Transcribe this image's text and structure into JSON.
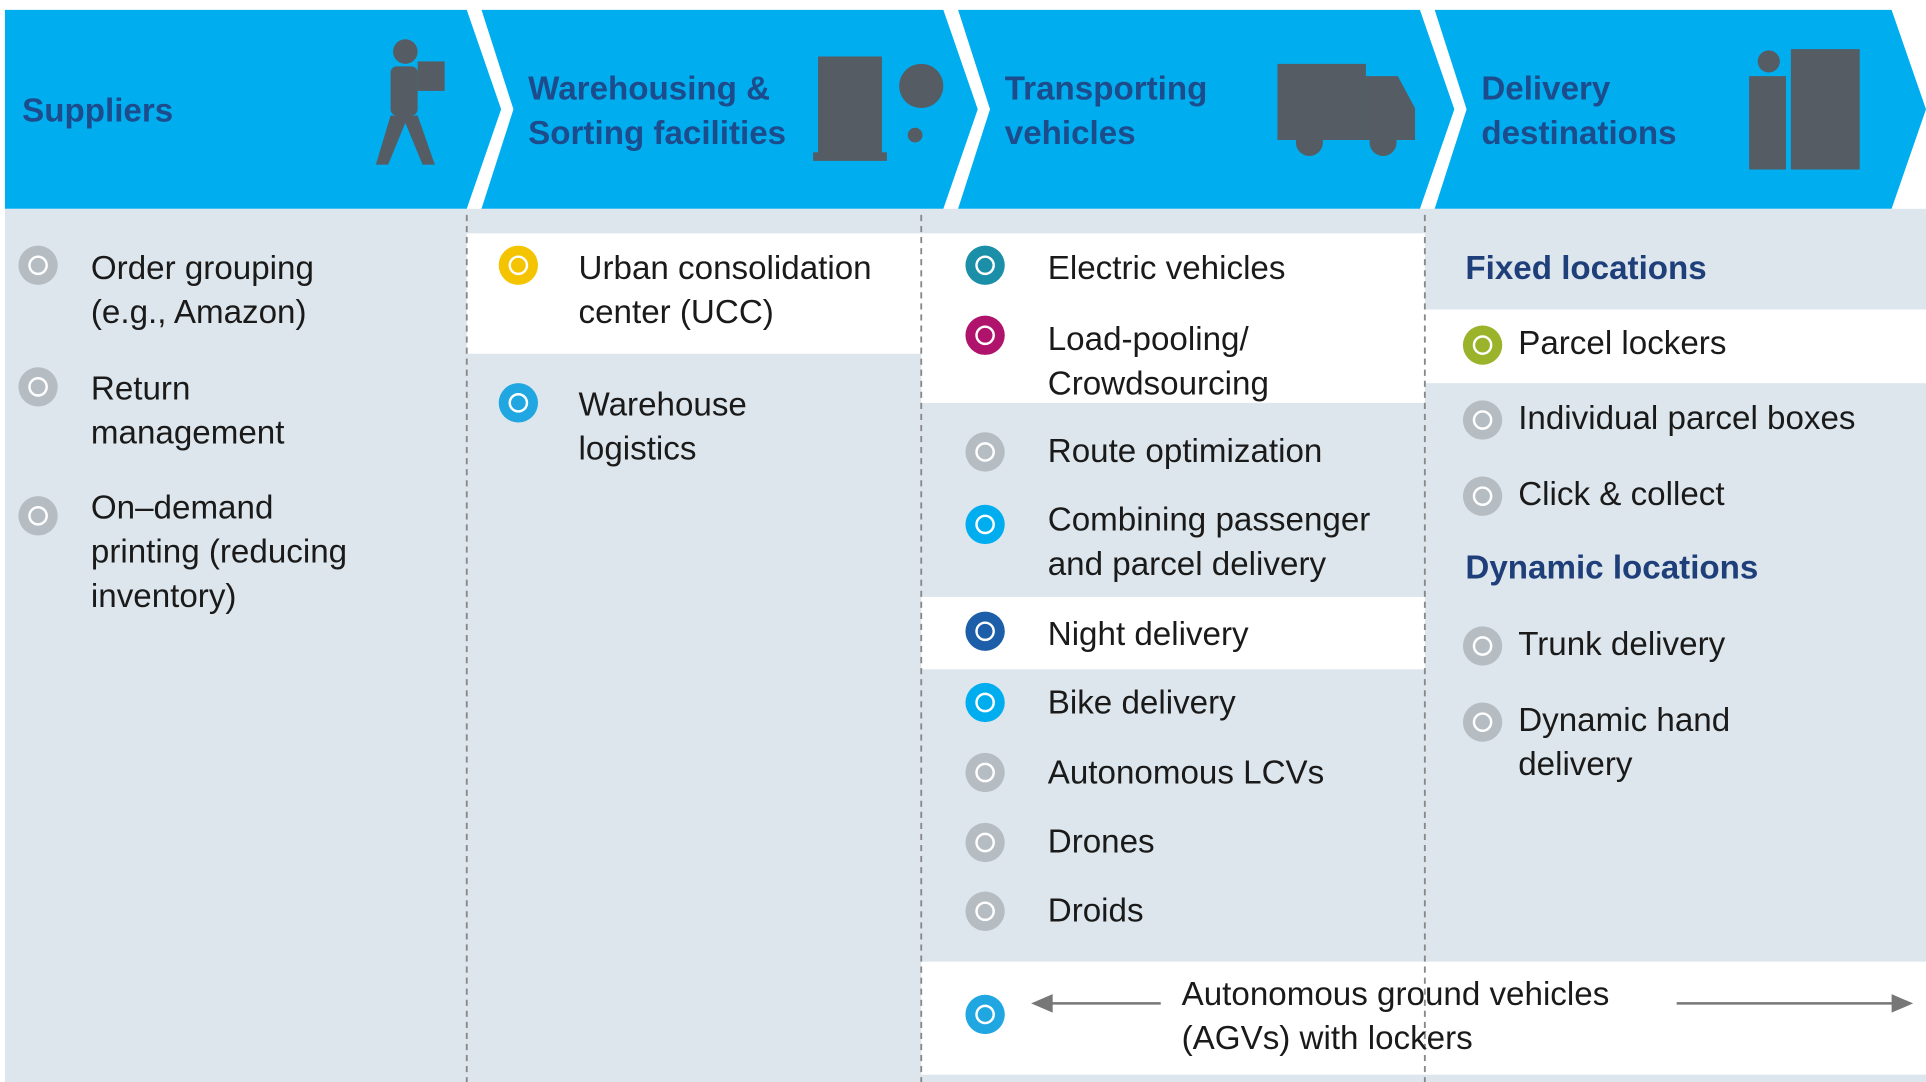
{
  "columns": [
    {
      "title": [
        "Suppliers"
      ],
      "items": [
        {
          "lines": [
            "Order grouping",
            "(e.g., Amazon)"
          ],
          "color": "#b5bcc2"
        },
        {
          "lines": [
            "Return",
            "management"
          ],
          "color": "#b5bcc2"
        },
        {
          "lines": [
            "On–demand",
            "printing (reducing",
            "inventory)"
          ],
          "color": "#b5bcc2"
        }
      ]
    },
    {
      "title": [
        "Warehousing &",
        "Sorting facilities"
      ],
      "items": [
        {
          "lines": [
            "Urban consolidation",
            "center (UCC)"
          ],
          "color": "#f5c400"
        },
        {
          "lines": [
            "Warehouse",
            "logistics"
          ],
          "color": "#20a6e0"
        }
      ]
    },
    {
      "title": [
        "Transporting",
        "vehicles"
      ],
      "items": [
        {
          "lines": [
            "Electric vehicles"
          ],
          "color": "#1b8ea8"
        },
        {
          "lines": [
            "Load-pooling/",
            "Crowdsourcing"
          ],
          "color": "#b0136b"
        },
        {
          "lines": [
            "Route optimization"
          ],
          "color": "#b5bcc2"
        },
        {
          "lines": [
            "Combining passenger",
            "and parcel delivery"
          ],
          "color": "#00aeef"
        },
        {
          "lines": [
            "Night delivery"
          ],
          "color": "#1c5fa8"
        },
        {
          "lines": [
            "Bike delivery"
          ],
          "color": "#00aeef"
        },
        {
          "lines": [
            "Autonomous LCVs"
          ],
          "color": "#b5bcc2"
        },
        {
          "lines": [
            "Drones"
          ],
          "color": "#b5bcc2"
        },
        {
          "lines": [
            "Droids"
          ],
          "color": "#b5bcc2"
        }
      ]
    },
    {
      "title": [
        "Delivery",
        "destinations"
      ],
      "groups": [
        {
          "heading": "Fixed locations",
          "items": [
            {
              "lines": [
                "Parcel lockers"
              ],
              "color": "#9bb32a"
            },
            {
              "lines": [
                "Individual parcel boxes"
              ],
              "color": "#b5bcc2"
            },
            {
              "lines": [
                "Click & collect"
              ],
              "color": "#b5bcc2"
            }
          ]
        },
        {
          "heading": "Dynamic locations",
          "items": [
            {
              "lines": [
                "Trunk delivery"
              ],
              "color": "#b5bcc2"
            },
            {
              "lines": [
                "Dynamic hand",
                "delivery"
              ],
              "color": "#b5bcc2"
            }
          ]
        }
      ]
    }
  ],
  "spanning": {
    "lines": [
      "Autonomous ground vehicles",
      "(AGVs) with lockers"
    ],
    "color": "#20a6e0"
  }
}
